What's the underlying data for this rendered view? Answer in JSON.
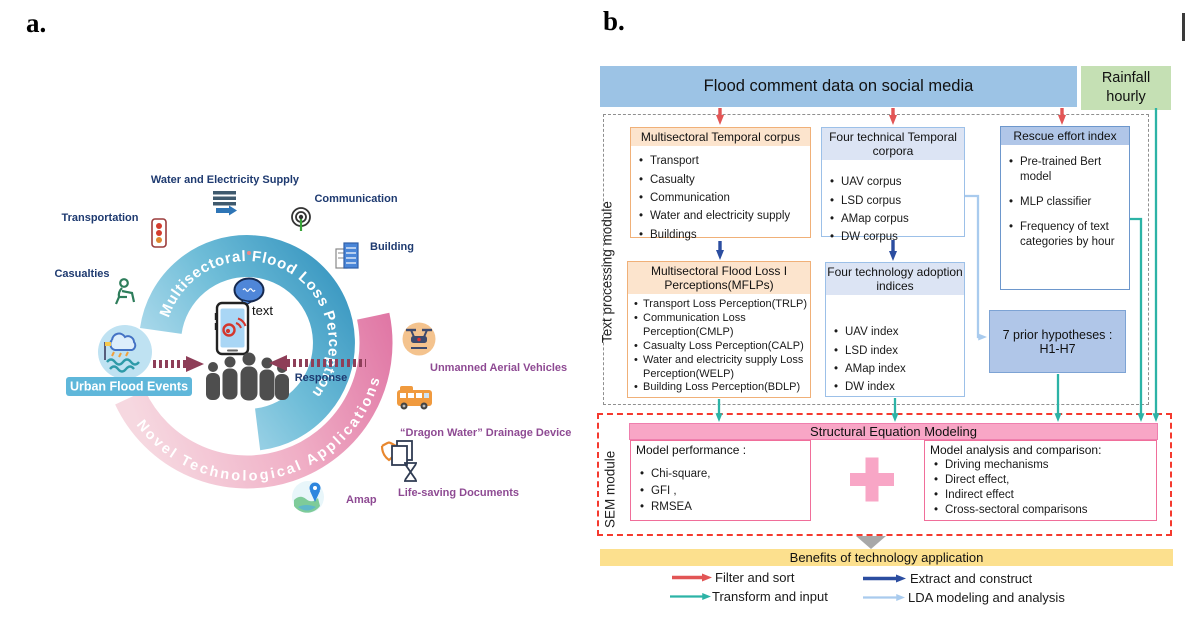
{
  "colors": {
    "arrow_red": "#e25555",
    "arrow_teal": "#2cb3a6",
    "arrow_dark_blue": "#2b4da0",
    "arrow_light_blue": "#a9cbee",
    "top_bar_blue": "#9cc3e5",
    "rainfall_green": "#c5e0b4",
    "orange_header": "#fce4cd",
    "blue_header": "#dce4f4",
    "indigo_header": "#b0c6e8",
    "sem_pink": "#f8a6c6",
    "benefits_yellow": "#fce08e",
    "blue_arc": "#2e8fbc",
    "pink_arc": "#e077a5"
  },
  "panel_a": {
    "panel_label": "a.",
    "arc_top_label": "Multisectoral Flood  Loss Perception",
    "arc_bottom_label": "Novel Technological Applications",
    "sectors": {
      "water": "Water and Electricity Supply",
      "communication": "Communication",
      "transportation": "Transportation",
      "building": "Building",
      "casualties": "Casualties"
    },
    "technologies": {
      "uav": "Unmanned Aerial Vehicles",
      "dragon_water": "“Dragon Water” Drainage Device",
      "life_saving": "Life-saving Documents",
      "amap": "Amap"
    },
    "urban_flood_badge": "Urban Flood Events",
    "response_label": "Response",
    "phone_text_label": "text"
  },
  "panel_b": {
    "panel_label": "b.",
    "top_bar": "Flood comment data on social media",
    "rainfall_box": "Rainfall hourly",
    "text_processing_label": "Text processing module",
    "sem_module_label": "SEM module",
    "boxes": {
      "mtc": {
        "title": "Multisectoral Temporal corpus",
        "items": [
          "Transport",
          "Casualty",
          "Communication",
          "Water and electricity supply",
          "Buildings"
        ]
      },
      "fttc": {
        "title": "Four technical Temporal corpora",
        "items": [
          "UAV corpus",
          "LSD corpus",
          "AMap corpus",
          "DW corpus"
        ]
      },
      "rei": {
        "title": "Rescue effort index",
        "items": [
          "Pre-trained Bert model",
          "MLP classifier",
          "Frequency of text categories by hour"
        ]
      },
      "mflp": {
        "title": "Multisectoral Flood Loss I Perceptions(MFLPs)",
        "items": [
          "Transport Loss Perception(TRLP)",
          "Communication Loss Perception(CMLP)",
          "Casualty Loss Perception(CALP)",
          "Water and electricity supply Loss Perception(WELP)",
          "Building Loss Perception(BDLP)"
        ]
      },
      "ftai": {
        "title": "Four technology adoption indices",
        "items": [
          "UAV index",
          "LSD index",
          "AMap index",
          "DW index"
        ]
      },
      "hypotheses": {
        "line1": "7 prior hypotheses :",
        "line2": "H1-H7"
      },
      "sem_bar": "Structural Equation Modeling",
      "model_performance": {
        "title": "Model performance :",
        "items": [
          "Chi-square,",
          "GFI ,",
          "RMSEA"
        ]
      },
      "model_analysis": {
        "title": "Model analysis and comparison:",
        "items": [
          "Driving mechanisms",
          "Direct effect,",
          "Indirect effect",
          "Cross-sectoral comparisons"
        ]
      },
      "benefits_bar": "Benefits of technology application"
    },
    "legend": [
      {
        "label": "Filter and sort",
        "color": "#e25555"
      },
      {
        "label": "Transform and input",
        "color": "#2cb3a6"
      },
      {
        "label": "Extract and construct",
        "color": "#2b4da0"
      },
      {
        "label": "LDA modeling and analysis",
        "color": "#a9cbee"
      }
    ]
  }
}
